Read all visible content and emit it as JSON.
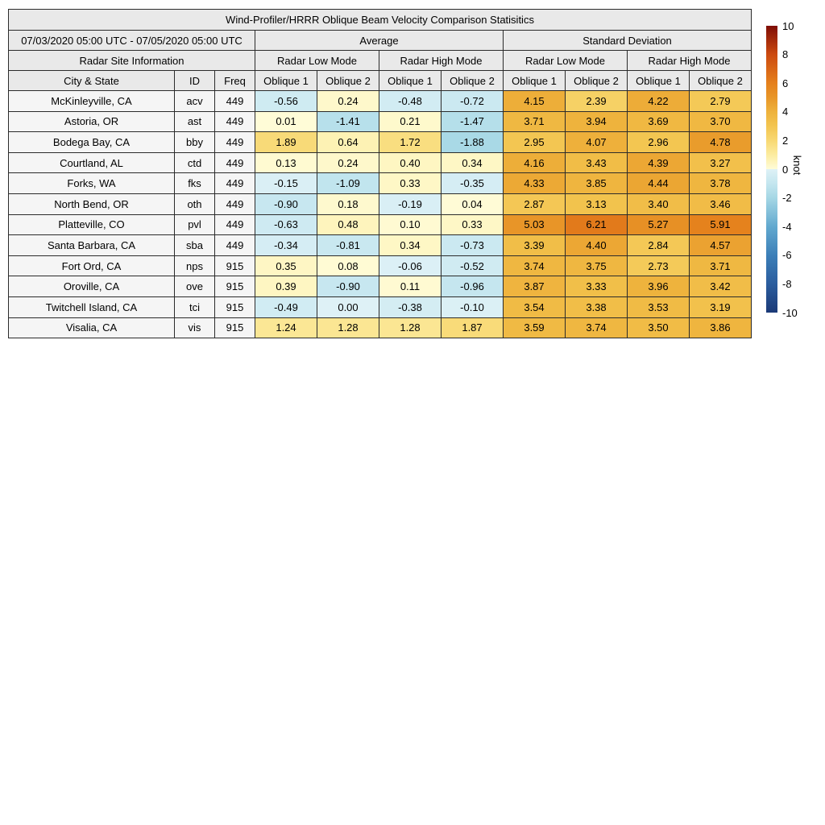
{
  "title": "Wind-Profiler/HRRR Oblique Beam Velocity Comparison Statisitics",
  "header": {
    "date_range": "07/03/2020 05:00 UTC - 07/05/2020 05:00 UTC",
    "average": "Average",
    "standard_deviation": "Standard Deviation",
    "site_info": "Radar Site Information",
    "low_mode": "Radar Low Mode",
    "high_mode": "Radar High Mode",
    "city_state": "City & State",
    "id": "ID",
    "freq": "Freq",
    "oblique1": "Oblique 1",
    "oblique2": "Oblique 2"
  },
  "chart_data": {
    "type": "heatmap",
    "title": "Wind-Profiler/HRRR Oblique Beam Velocity Comparison Statisitics",
    "date_range": "07/03/2020 05:00 UTC - 07/05/2020 05:00 UTC",
    "column_groups": [
      {
        "label": "Average",
        "modes": [
          "Radar Low Mode",
          "Radar High Mode"
        ]
      },
      {
        "label": "Standard Deviation",
        "modes": [
          "Radar Low Mode",
          "Radar High Mode"
        ]
      }
    ],
    "value_columns": [
      "Avg Low Oblique 1",
      "Avg Low Oblique 2",
      "Avg High Oblique 1",
      "Avg High Oblique 2",
      "Std Low Oblique 1",
      "Std Low Oblique 2",
      "Std High Oblique 1",
      "Std High Oblique 2"
    ],
    "rows": [
      {
        "city": "McKinleyville, CA",
        "id": "acv",
        "freq": "449",
        "values": [
          -0.56,
          0.24,
          -0.48,
          -0.72,
          4.15,
          2.39,
          4.22,
          2.79
        ]
      },
      {
        "city": "Astoria, OR",
        "id": "ast",
        "freq": "449",
        "values": [
          0.01,
          -1.41,
          0.21,
          -1.47,
          3.71,
          3.94,
          3.69,
          3.7
        ]
      },
      {
        "city": "Bodega Bay, CA",
        "id": "bby",
        "freq": "449",
        "values": [
          1.89,
          0.64,
          1.72,
          -1.88,
          2.95,
          4.07,
          2.96,
          4.78
        ]
      },
      {
        "city": "Courtland, AL",
        "id": "ctd",
        "freq": "449",
        "values": [
          0.13,
          0.24,
          0.4,
          0.34,
          4.16,
          3.43,
          4.39,
          3.27
        ]
      },
      {
        "city": "Forks, WA",
        "id": "fks",
        "freq": "449",
        "values": [
          -0.15,
          -1.09,
          0.33,
          -0.35,
          4.33,
          3.85,
          4.44,
          3.78
        ]
      },
      {
        "city": "North Bend, OR",
        "id": "oth",
        "freq": "449",
        "values": [
          -0.9,
          0.18,
          -0.19,
          0.04,
          2.87,
          3.13,
          3.4,
          3.46
        ]
      },
      {
        "city": "Platteville, CO",
        "id": "pvl",
        "freq": "449",
        "values": [
          -0.63,
          0.48,
          0.1,
          0.33,
          5.03,
          6.21,
          5.27,
          5.91
        ]
      },
      {
        "city": "Santa Barbara, CA",
        "id": "sba",
        "freq": "449",
        "values": [
          -0.34,
          -0.81,
          0.34,
          -0.73,
          3.39,
          4.4,
          2.84,
          4.57
        ]
      },
      {
        "city": "Fort Ord, CA",
        "id": "nps",
        "freq": "915",
        "values": [
          0.35,
          0.08,
          -0.06,
          -0.52,
          3.74,
          3.75,
          2.73,
          3.71
        ]
      },
      {
        "city": "Oroville, CA",
        "id": "ove",
        "freq": "915",
        "values": [
          0.39,
          -0.9,
          0.11,
          -0.96,
          3.87,
          3.33,
          3.96,
          3.42
        ]
      },
      {
        "city": "Twitchell Island, CA",
        "id": "tci",
        "freq": "915",
        "values": [
          -0.49,
          0.0,
          -0.38,
          -0.1,
          3.54,
          3.38,
          3.53,
          3.19
        ]
      },
      {
        "city": "Visalia, CA",
        "id": "vis",
        "freq": "915",
        "values": [
          1.24,
          1.28,
          1.28,
          1.87,
          3.59,
          3.74,
          3.5,
          3.86
        ]
      }
    ],
    "colorbar": {
      "label": "knot",
      "vmin": -10,
      "vmax": 10,
      "ticks": [
        10,
        8,
        6,
        4,
        2,
        0,
        -2,
        -4,
        -6,
        -8,
        -10
      ]
    }
  },
  "colors": {
    "header_bg": "#e9e9e9",
    "site_cell_bg": "#f5f5f5",
    "border": "#2b2b2b",
    "colormap_positive": [
      [
        0,
        "#fffcd8"
      ],
      [
        1,
        "#fceca0"
      ],
      [
        2,
        "#f8d873"
      ],
      [
        3,
        "#f3c550"
      ],
      [
        4,
        "#eeb23c"
      ],
      [
        5,
        "#e89628"
      ],
      [
        6,
        "#e5801c"
      ],
      [
        8,
        "#cc4a10"
      ],
      [
        10,
        "#7f0d05"
      ]
    ],
    "colormap_negative": [
      [
        -10,
        "#1b3a77"
      ],
      [
        -8,
        "#2b5d9e"
      ],
      [
        -6,
        "#3c7fb8"
      ],
      [
        -4,
        "#62a9cf"
      ],
      [
        -2,
        "#a5d7e5"
      ],
      [
        -1,
        "#c4e6ef"
      ],
      [
        0,
        "#def1f6"
      ]
    ]
  }
}
